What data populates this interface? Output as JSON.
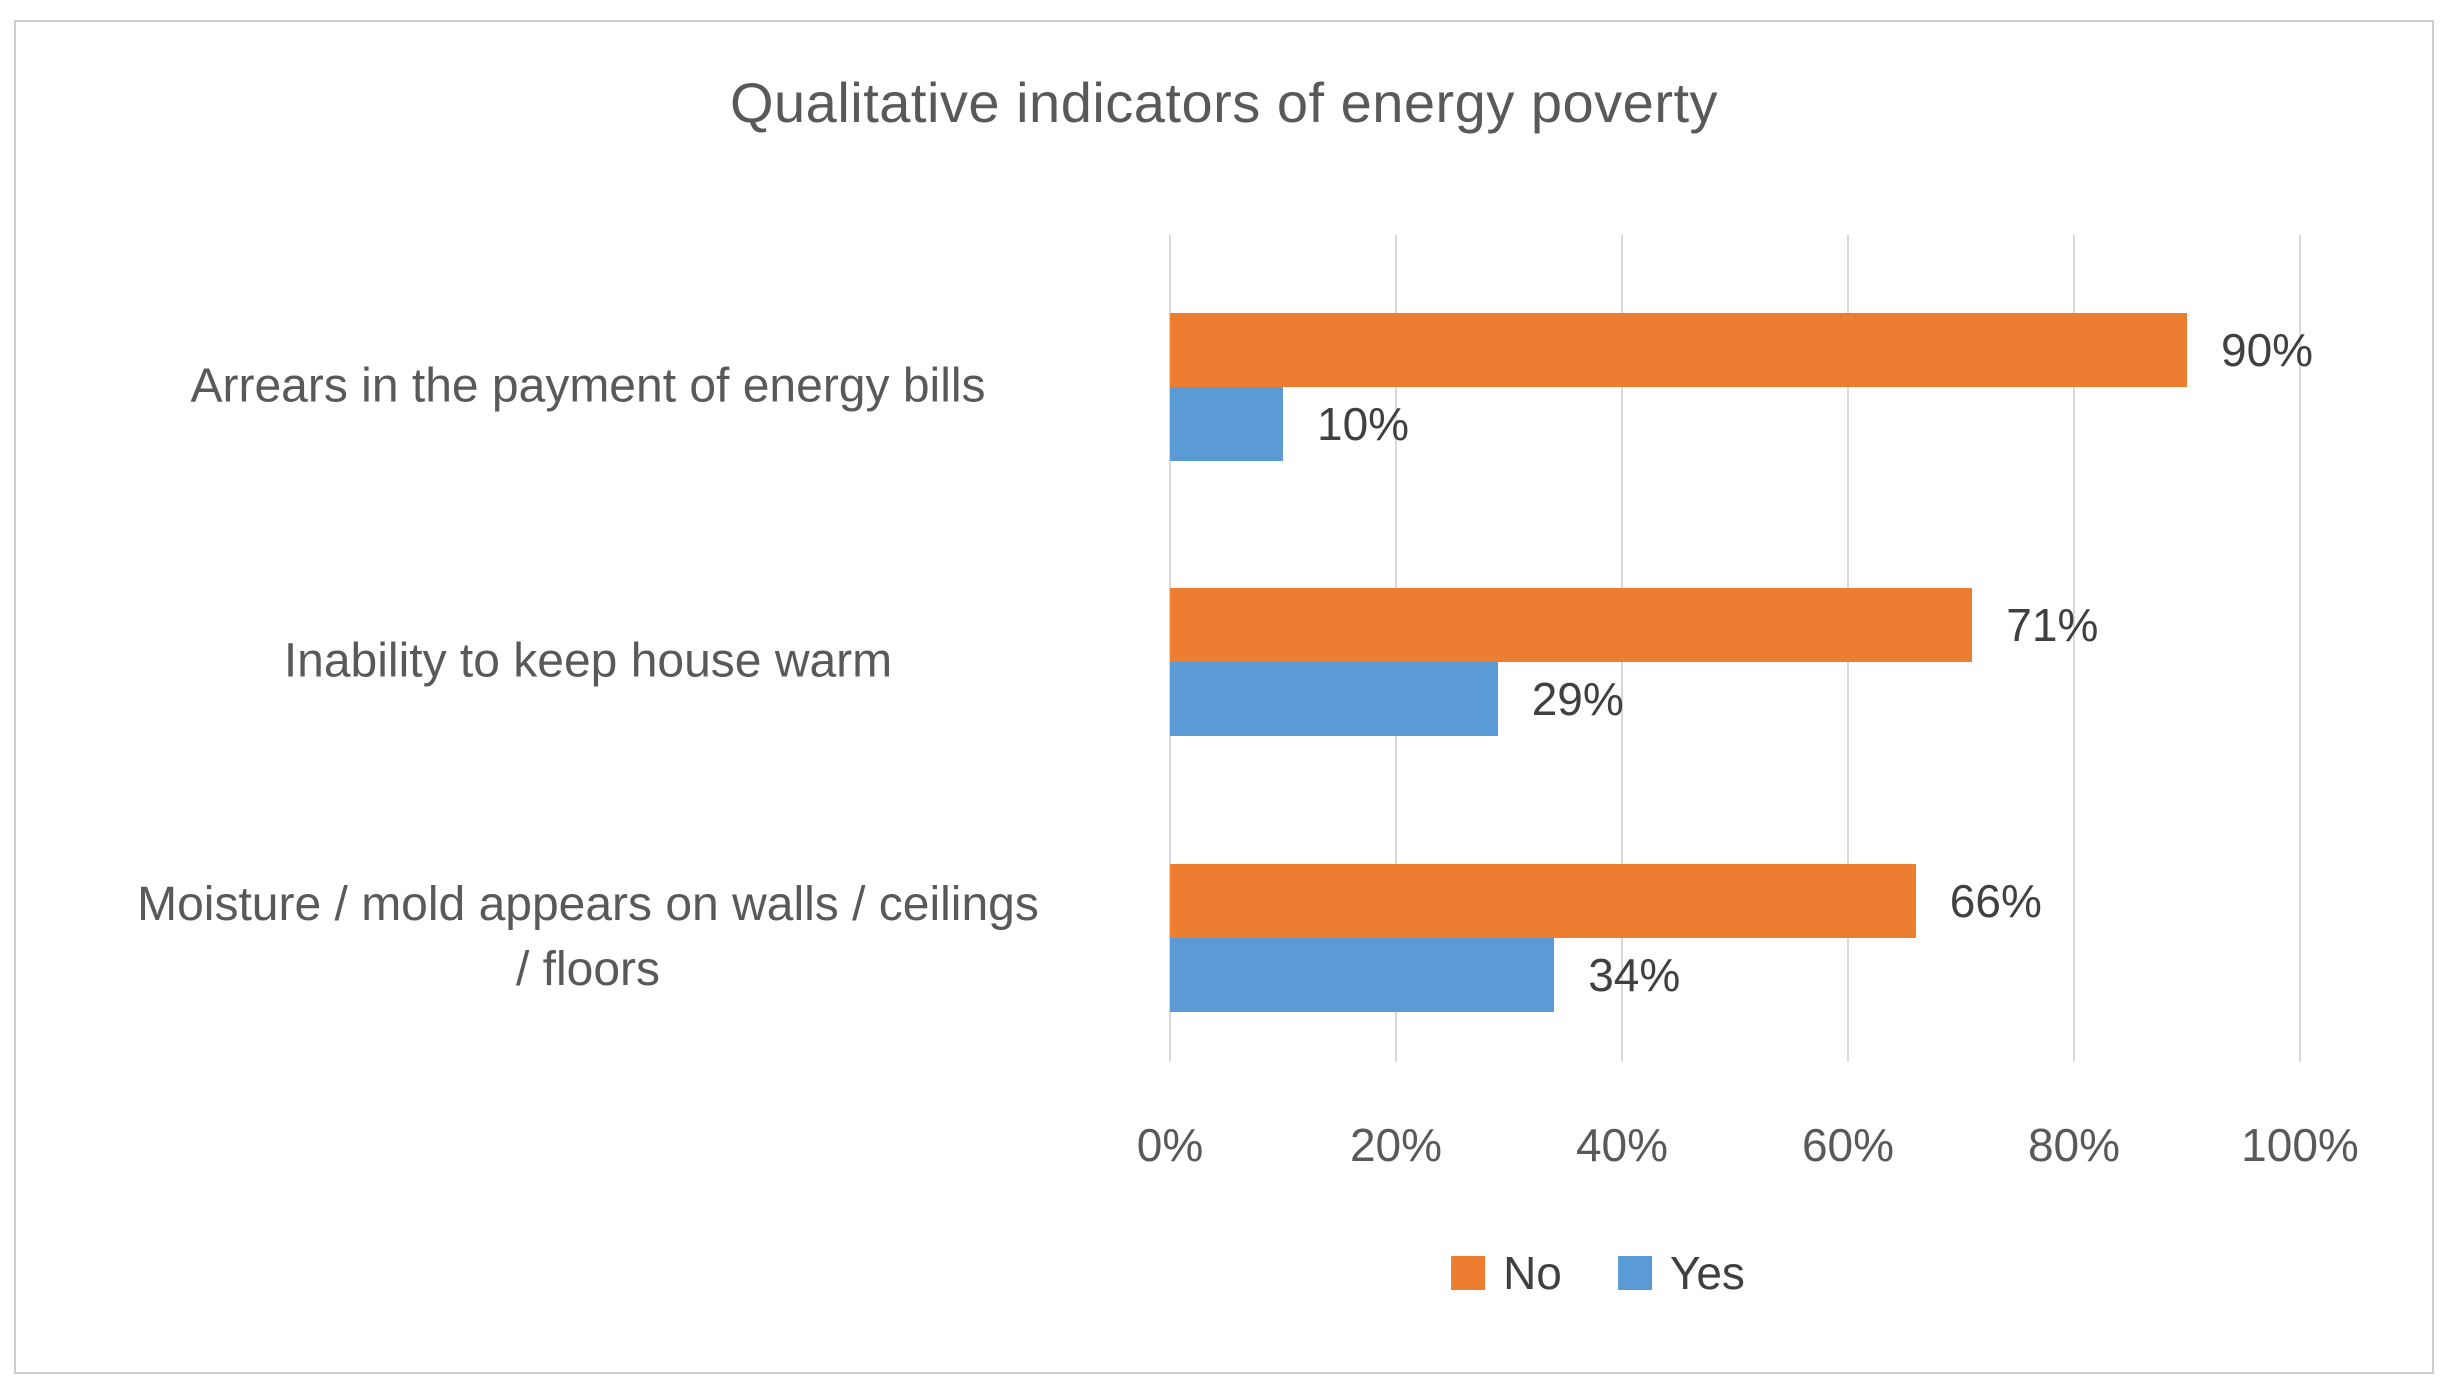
{
  "chart_data": {
    "type": "bar",
    "orientation": "horizontal",
    "title": "Qualitative indicators of energy poverty",
    "categories": [
      "Arrears in the payment of energy bills",
      "Inability to keep house warm",
      "Moisture / mold appears on walls / ceilings\n/ floors"
    ],
    "series": [
      {
        "name": "No",
        "color": "#ED7D31",
        "values": [
          90,
          71,
          66
        ],
        "labels": [
          "90%",
          "71%",
          "66%"
        ]
      },
      {
        "name": "Yes",
        "color": "#5B9BD5",
        "values": [
          10,
          29,
          34
        ],
        "labels": [
          "10%",
          "29%",
          "34%"
        ]
      }
    ],
    "x_ticks": [
      "0%",
      "20%",
      "40%",
      "60%",
      "80%",
      "100%"
    ],
    "xlim": [
      0,
      100
    ],
    "grid": true,
    "gridline_color": "#D9D9D9",
    "legend_position": "bottom",
    "text_color": "#595959",
    "label_color": "#404040"
  }
}
